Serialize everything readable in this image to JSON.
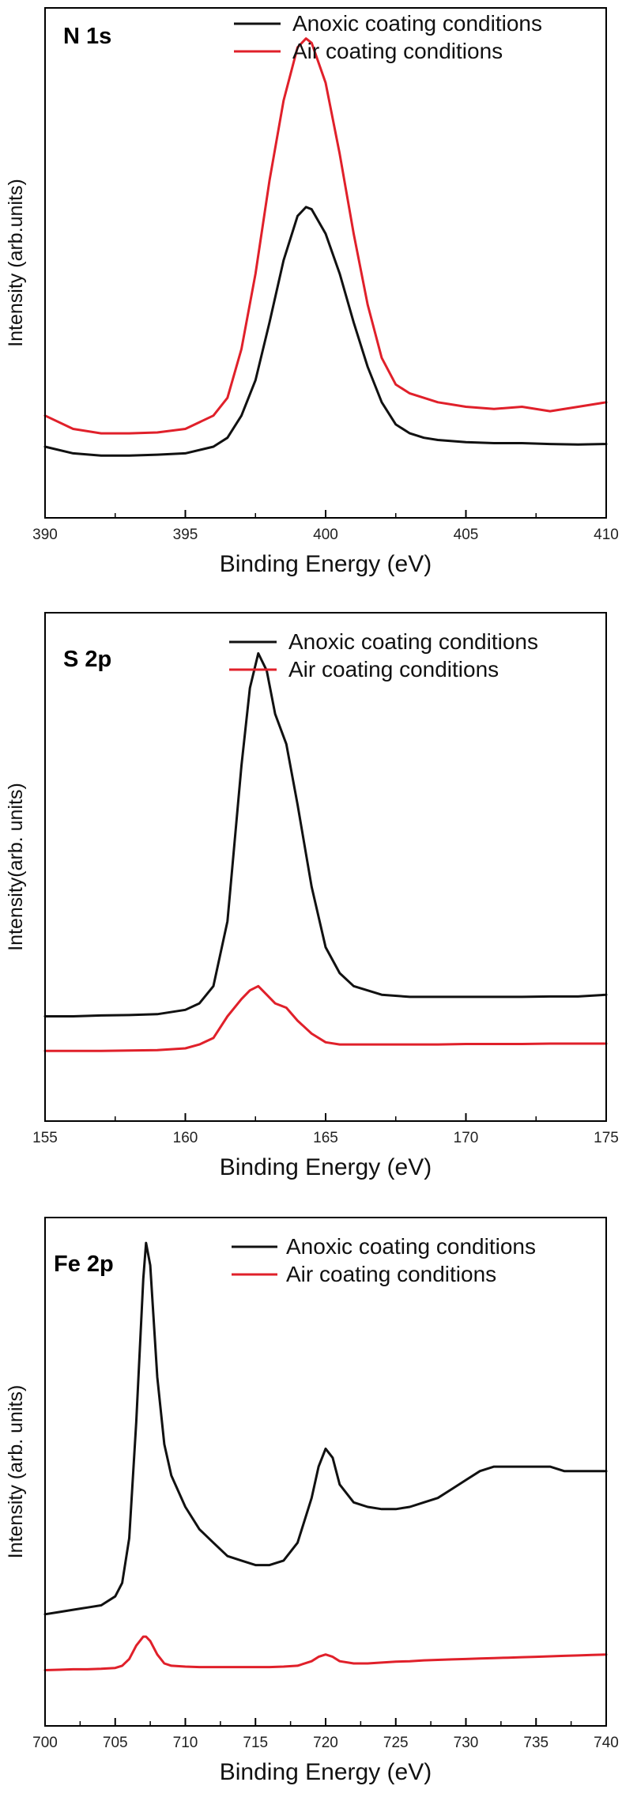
{
  "colors": {
    "anoxic": "#111111",
    "air": "#e0202a"
  },
  "chart_data": [
    {
      "type": "line",
      "title": "N 1s",
      "xlabel": "Binding Energy (eV)",
      "ylabel": "Intensity (arb.units)",
      "xlim": [
        390,
        410
      ],
      "ylim": [
        0,
        1
      ],
      "xticks": [
        390,
        395,
        400,
        405,
        410
      ],
      "xtick_labels": [
        "390",
        "395",
        "400",
        "405",
        "410"
      ],
      "legend": "top-right",
      "series": [
        {
          "name": "Anoxic coating conditions",
          "color": "#111111",
          "x": [
            390,
            391,
            392,
            393,
            394,
            395,
            396,
            396.5,
            397,
            397.5,
            398,
            398.5,
            399,
            399.3,
            399.5,
            400,
            400.5,
            401,
            401.5,
            402,
            402.5,
            403,
            403.5,
            404,
            405,
            406,
            407,
            408,
            409,
            410
          ],
          "y": [
            0.08,
            0.065,
            0.06,
            0.06,
            0.062,
            0.065,
            0.08,
            0.1,
            0.15,
            0.23,
            0.36,
            0.5,
            0.6,
            0.62,
            0.615,
            0.56,
            0.47,
            0.36,
            0.26,
            0.18,
            0.13,
            0.11,
            0.1,
            0.095,
            0.09,
            0.088,
            0.088,
            0.086,
            0.085,
            0.086
          ]
        },
        {
          "name": "Air coating conditions",
          "color": "#e0202a",
          "x": [
            390,
            391,
            392,
            393,
            394,
            395,
            396,
            396.5,
            397,
            397.5,
            398,
            398.5,
            399,
            399.3,
            399.5,
            400,
            400.5,
            401,
            401.5,
            402,
            402.5,
            403,
            403.5,
            404,
            405,
            406,
            407,
            408,
            409,
            410
          ],
          "y": [
            0.15,
            0.12,
            0.11,
            0.11,
            0.112,
            0.12,
            0.15,
            0.19,
            0.3,
            0.47,
            0.68,
            0.86,
            0.98,
            1.0,
            0.99,
            0.9,
            0.74,
            0.56,
            0.4,
            0.28,
            0.22,
            0.2,
            0.19,
            0.18,
            0.17,
            0.165,
            0.17,
            0.16,
            0.17,
            0.18
          ]
        }
      ]
    },
    {
      "type": "line",
      "title": "S 2p",
      "xlabel": "Binding Energy (eV)",
      "ylabel": "Intensity(arb. units)",
      "xlim": [
        155,
        175
      ],
      "ylim": [
        0,
        1
      ],
      "xticks": [
        155,
        160,
        165,
        170,
        175
      ],
      "xtick_labels": [
        "155",
        "160",
        "165",
        "170",
        "175"
      ],
      "legend": "top-right",
      "series": [
        {
          "name": "Anoxic coating conditions",
          "color": "#111111",
          "x": [
            155,
            156,
            157,
            158,
            159,
            160,
            160.5,
            161,
            161.5,
            162,
            162.3,
            162.6,
            162.9,
            163.2,
            163.6,
            164,
            164.5,
            165,
            165.5,
            166,
            167,
            168,
            169,
            170,
            171,
            172,
            173,
            174,
            175
          ],
          "y": [
            0.16,
            0.16,
            0.162,
            0.163,
            0.165,
            0.175,
            0.19,
            0.23,
            0.38,
            0.74,
            0.92,
            1.0,
            0.96,
            0.86,
            0.79,
            0.65,
            0.46,
            0.32,
            0.26,
            0.23,
            0.21,
            0.205,
            0.205,
            0.205,
            0.205,
            0.205,
            0.206,
            0.206,
            0.21
          ]
        },
        {
          "name": "Air coating conditions",
          "color": "#e0202a",
          "x": [
            155,
            156,
            157,
            158,
            159,
            160,
            160.5,
            161,
            161.5,
            162,
            162.3,
            162.6,
            162.9,
            163.2,
            163.6,
            164,
            164.5,
            165,
            165.5,
            166,
            167,
            168,
            169,
            170,
            171,
            172,
            173,
            174,
            175
          ],
          "y": [
            0.08,
            0.08,
            0.08,
            0.081,
            0.082,
            0.086,
            0.095,
            0.11,
            0.16,
            0.2,
            0.22,
            0.23,
            0.21,
            0.19,
            0.18,
            0.15,
            0.12,
            0.1,
            0.095,
            0.095,
            0.095,
            0.095,
            0.095,
            0.096,
            0.096,
            0.096,
            0.097,
            0.097,
            0.097
          ]
        }
      ]
    },
    {
      "type": "line",
      "title": "Fe 2p",
      "xlabel": "Binding Energy (eV)",
      "ylabel": "Intensity (arb. units)",
      "xlim": [
        700,
        740
      ],
      "ylim": [
        0,
        1
      ],
      "xticks": [
        700,
        705,
        710,
        715,
        720,
        725,
        730,
        735,
        740
      ],
      "xtick_labels": [
        "700",
        "705",
        "710",
        "715",
        "720",
        "725",
        "730",
        "735",
        "740"
      ],
      "legend": "top-right",
      "series": [
        {
          "name": "Anoxic coating conditions",
          "color": "#111111",
          "x": [
            700,
            701,
            702,
            703,
            704,
            705,
            705.5,
            706,
            706.5,
            707,
            707.2,
            707.5,
            708,
            708.5,
            709,
            710,
            711,
            712,
            713,
            714,
            715,
            716,
            717,
            718,
            719,
            719.5,
            720,
            720.5,
            721,
            722,
            723,
            724,
            725,
            726,
            727,
            728,
            729,
            730,
            731,
            732,
            733,
            734,
            735,
            736,
            737,
            738,
            739,
            740
          ],
          "y": [
            0.17,
            0.175,
            0.18,
            0.185,
            0.19,
            0.21,
            0.24,
            0.34,
            0.6,
            0.92,
            1.0,
            0.95,
            0.7,
            0.55,
            0.48,
            0.41,
            0.36,
            0.33,
            0.3,
            0.29,
            0.28,
            0.28,
            0.29,
            0.33,
            0.43,
            0.5,
            0.54,
            0.52,
            0.46,
            0.42,
            0.41,
            0.405,
            0.405,
            0.41,
            0.42,
            0.43,
            0.45,
            0.47,
            0.49,
            0.5,
            0.5,
            0.5,
            0.5,
            0.5,
            0.49,
            0.49,
            0.49,
            0.49
          ]
        },
        {
          "name": "Air coating conditions",
          "color": "#e0202a",
          "x": [
            700,
            701,
            702,
            703,
            704,
            705,
            705.5,
            706,
            706.5,
            707,
            707.2,
            707.5,
            708,
            708.5,
            709,
            710,
            711,
            712,
            713,
            714,
            715,
            716,
            717,
            718,
            719,
            719.5,
            720,
            720.5,
            721,
            722,
            723,
            724,
            725,
            726,
            727,
            728,
            729,
            730,
            731,
            732,
            733,
            734,
            735,
            736,
            737,
            738,
            739,
            740
          ],
          "y": [
            0.045,
            0.046,
            0.047,
            0.047,
            0.048,
            0.05,
            0.055,
            0.07,
            0.1,
            0.12,
            0.12,
            0.11,
            0.08,
            0.06,
            0.055,
            0.053,
            0.052,
            0.052,
            0.052,
            0.052,
            0.052,
            0.052,
            0.053,
            0.055,
            0.065,
            0.075,
            0.08,
            0.075,
            0.065,
            0.06,
            0.06,
            0.062,
            0.064,
            0.065,
            0.067,
            0.068,
            0.069,
            0.07,
            0.071,
            0.072,
            0.073,
            0.074,
            0.075,
            0.076,
            0.077,
            0.078,
            0.079,
            0.08
          ]
        }
      ]
    }
  ]
}
